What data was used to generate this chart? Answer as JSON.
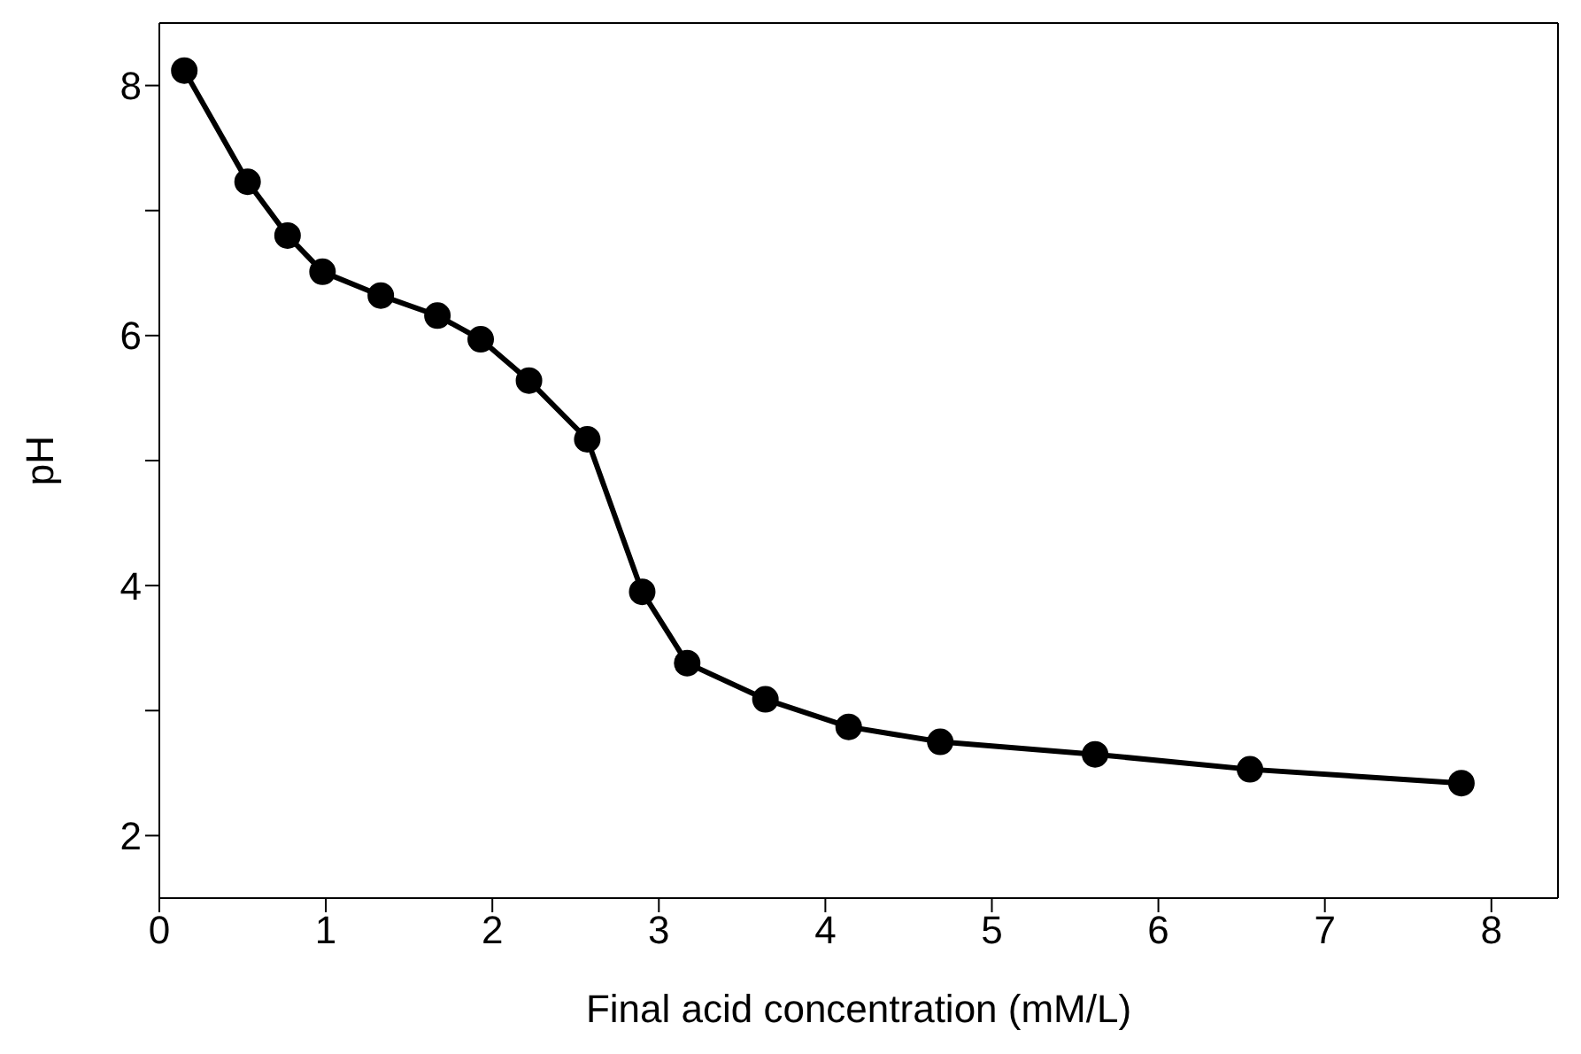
{
  "chart_data": {
    "type": "line",
    "xlabel": "Final acid concentration (mM/L)",
    "ylabel": "pH",
    "x": [
      0.15,
      0.53,
      0.77,
      0.98,
      1.33,
      1.67,
      1.93,
      2.22,
      2.57,
      2.9,
      3.17,
      3.64,
      4.14,
      4.69,
      5.62,
      6.55,
      7.82
    ],
    "series": [
      {
        "color": "#000000",
        "values": [
          8.12,
          7.23,
          6.8,
          6.51,
          6.32,
          6.16,
          5.97,
          5.64,
          5.17,
          3.95,
          3.38,
          3.09,
          2.87,
          2.75,
          2.65,
          2.53,
          2.42
        ]
      }
    ],
    "xlim": [
      0,
      8.4
    ],
    "xticks": [
      0,
      1,
      2,
      3,
      4,
      5,
      6,
      7,
      8
    ],
    "ylim": [
      1.5,
      8.5
    ],
    "yticks": [
      2,
      {
        "value": 3,
        "label": null
      },
      4,
      {
        "value": 5,
        "label": null
      },
      6,
      {
        "value": 7,
        "label": null
      },
      8
    ],
    "grid": false,
    "legend": false,
    "marker": "circle",
    "line_style": "solid"
  }
}
